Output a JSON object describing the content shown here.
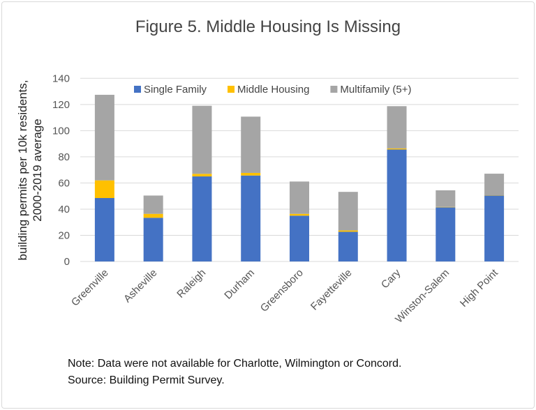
{
  "chart_data": {
    "type": "bar",
    "stacked": true,
    "title": "Figure 5. Middle Housing Is Missing",
    "ylabel": "building permits per 10k residents, 2000-2019 average",
    "xlabel": "",
    "ylim": [
      0,
      140
    ],
    "yticks": [
      0,
      20,
      40,
      60,
      80,
      100,
      120,
      140
    ],
    "grid": true,
    "legend": "top",
    "categories": [
      "Greenville",
      "Asheville",
      "Raleigh",
      "Durham",
      "Greensboro",
      "Fayetteville",
      "Cary",
      "Winston-Salem",
      "High Point"
    ],
    "series": [
      {
        "name": "Single Family",
        "color": "#4472c4",
        "values": [
          48.5,
          33.4,
          65,
          65.7,
          35,
          22.7,
          85.6,
          41.4,
          50.4
        ]
      },
      {
        "name": "Middle Housing",
        "color": "#ffc000",
        "values": [
          13.5,
          3,
          2,
          2,
          1.4,
          1,
          0.8,
          0.3,
          0.2
        ]
      },
      {
        "name": "Multifamily (5+)",
        "color": "#a5a5a5",
        "values": [
          65.4,
          14,
          52,
          43,
          24.7,
          29.5,
          32.3,
          12.7,
          16.5
        ]
      }
    ]
  },
  "notes": {
    "line1": "Note: Data were not available for Charlotte, Wilmington or Concord.",
    "line2": "Source: Building Permit Survey."
  }
}
